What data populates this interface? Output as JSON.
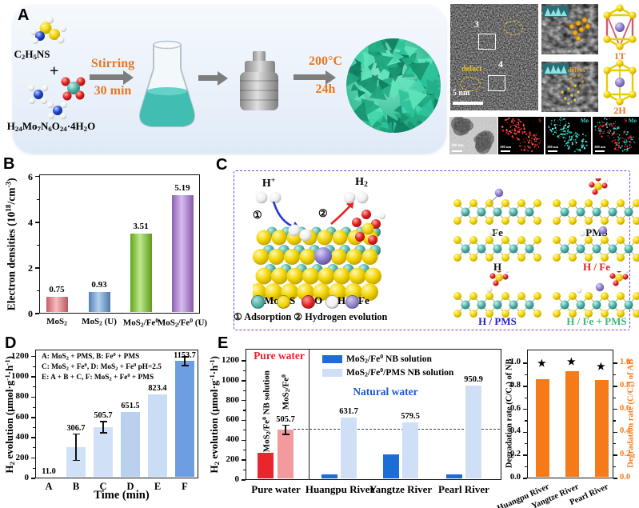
{
  "panels": {
    "A": "A",
    "B": "B",
    "C": "C",
    "D": "D",
    "E": "E"
  },
  "panelA": {
    "reactant1": "C_2H_5NS",
    "plus": "+",
    "reactant2": "H_{24}Mo_7N_6O_{24}·4H_2O",
    "step1_title": "Stirring",
    "step1_sub": "30 min",
    "step2_title": "200°C",
    "step2_sub": "24h",
    "hrtem": {
      "region3": "3",
      "region4": "4",
      "defect": "defect",
      "inset_defect": "defect",
      "scalebar": "5 nm",
      "phase_1t": "1T",
      "phase_2h": "2H"
    },
    "maps": {
      "scalebar": "100 nm",
      "s": "S",
      "mo": "Mo"
    }
  },
  "panelC": {
    "h_plus": "H^+",
    "h2": "H_2",
    "step1": "①",
    "step2": "②",
    "legend": [
      {
        "name": "Mo",
        "color": "#4fb3a9"
      },
      {
        "name": "S",
        "color": "#f2d400"
      },
      {
        "name": "O",
        "color": "#e32020"
      },
      {
        "name": "H",
        "color": "#f2f2f2"
      },
      {
        "name": "Fe",
        "color": "#9183cd"
      }
    ],
    "caption": "① Adsorption ② Hydrogen evolution",
    "structures": [
      {
        "label": "Fe",
        "color": "#111111",
        "type": "Fe"
      },
      {
        "label": "PMS",
        "color": "#111111",
        "type": "PMS"
      },
      {
        "label": "H",
        "color": "#111111",
        "type": "H"
      },
      {
        "label": "H / Fe",
        "color": "#e31e1e",
        "type": "HFe"
      },
      {
        "label": "H / PMS",
        "color": "#2222cc",
        "type": "HPMS"
      },
      {
        "label": "H / Fe + PMS",
        "color": "#3cb878",
        "type": "HFePMS"
      }
    ]
  },
  "chart_data": [
    {
      "id": "B",
      "type": "bar",
      "ylabel": "Electron densities (10^{18}/cm^{-3})",
      "ylim": [
        0,
        6.1
      ],
      "yticks": [
        0,
        2,
        4,
        6
      ],
      "yticks_minor": [
        1,
        3,
        5
      ],
      "categories": [
        "MoS_2",
        "MoS_2 (U)",
        "MoS_2/Fe^0",
        "MoS_2/Fe^0 (U)"
      ],
      "values": [
        0.75,
        0.93,
        3.51,
        5.19
      ],
      "value_labels": [
        "0.75",
        "0.93",
        "3.51",
        "5.19"
      ],
      "colors": [
        "#f2787e",
        "#66a0e0",
        "#7ccf1e",
        "#b078e0"
      ]
    },
    {
      "id": "D",
      "type": "bar",
      "ylabel": "H_2 evolution (μmol·g^{-1}·h^{-1})",
      "xlabel": "Time (min)",
      "ylim": [
        0,
        1250
      ],
      "yticks": [
        0,
        200,
        400,
        600,
        800,
        1000,
        1200
      ],
      "yticks_minor": [
        100,
        300,
        500,
        700,
        900,
        1100
      ],
      "categories": [
        "A",
        "B",
        "C",
        "D",
        "E",
        "F"
      ],
      "values": [
        11.0,
        306.7,
        505.7,
        651.5,
        823.4,
        1153.7
      ],
      "value_labels": [
        "11.0",
        "306.7",
        "505.7",
        "651.5",
        "823.4",
        "1153.7"
      ],
      "errors": [
        0,
        130,
        55,
        0,
        0,
        45
      ],
      "colors": [
        "#cfe0f7",
        "#cfe0f7",
        "#cfe0f7",
        "#b9d0ee",
        "#c9ddf5",
        "#6d9ee2"
      ],
      "legend_lines": [
        "A: MoS_2 + PMS,  B: Fe^0 + PMS",
        "C: MoS_2 + Fe^0, D: MoS_2 + Fe^0 pH=2.5",
        "E: A + B + C, F: MoS_2 + Fe^0 + PMS"
      ]
    },
    {
      "id": "E1",
      "type": "grouped-bar",
      "ylabel": "H_2 evolution (μmol·g^{-1}·h^{-1})",
      "ylim": [
        0,
        1320
      ],
      "yticks": [
        0,
        200,
        400,
        600,
        800,
        1000,
        1200
      ],
      "yticks_minor": [
        100,
        300,
        500,
        700,
        900,
        1100
      ],
      "section_pure": {
        "title": "Pure water",
        "title_color": "#e8242a",
        "category": "Pure water",
        "bars": [
          {
            "label": "MoS_2/Fe^0 NB solution",
            "value": 275,
            "color": "#e8262c"
          },
          {
            "label": "MoS_2/Fe^0",
            "value": 505.7,
            "value_label": "505.7",
            "error": 45,
            "color": "#f29a9e"
          }
        ]
      },
      "section_natural": {
        "title": "Natural water",
        "title_color": "#1b57d8",
        "categories": [
          "Huangpu River",
          "Yangtze River",
          "Pearl River"
        ],
        "series": [
          {
            "name": "MoS_2/Fe^0 NB solution",
            "color": "#1c6ed6",
            "values": [
              60,
              260,
              58
            ]
          },
          {
            "name": "MoS_2/Fe^0/PMS NB solution",
            "color": "#cfdff6",
            "values": [
              631.7,
              579.5,
              950.9
            ],
            "value_labels": [
              "631.7",
              "579.5",
              "950.9"
            ]
          }
        ]
      },
      "dash_line_y": 505.7
    },
    {
      "id": "E2",
      "type": "bar",
      "ylabel_left": "Degradation rate (C/C_0) of NB",
      "ylabel_right": "Degradation rate (C/C_0) of AB",
      "right_axis_color": "#f57a1a",
      "ylim": [
        0,
        1.12
      ],
      "yticks": [
        0,
        0.2,
        0.4,
        0.6,
        0.8,
        1
      ],
      "yticks_minor": [
        0.1,
        0.3,
        0.5,
        0.7,
        0.9
      ],
      "categories": [
        "Huangpu River",
        "Yangtze River",
        "Pearl River"
      ],
      "values": [
        0.86,
        0.93,
        0.855
      ],
      "stars": [
        0.99,
        1.01,
        0.965
      ],
      "star_symbol": "★",
      "color": "#f57a1a"
    }
  ]
}
